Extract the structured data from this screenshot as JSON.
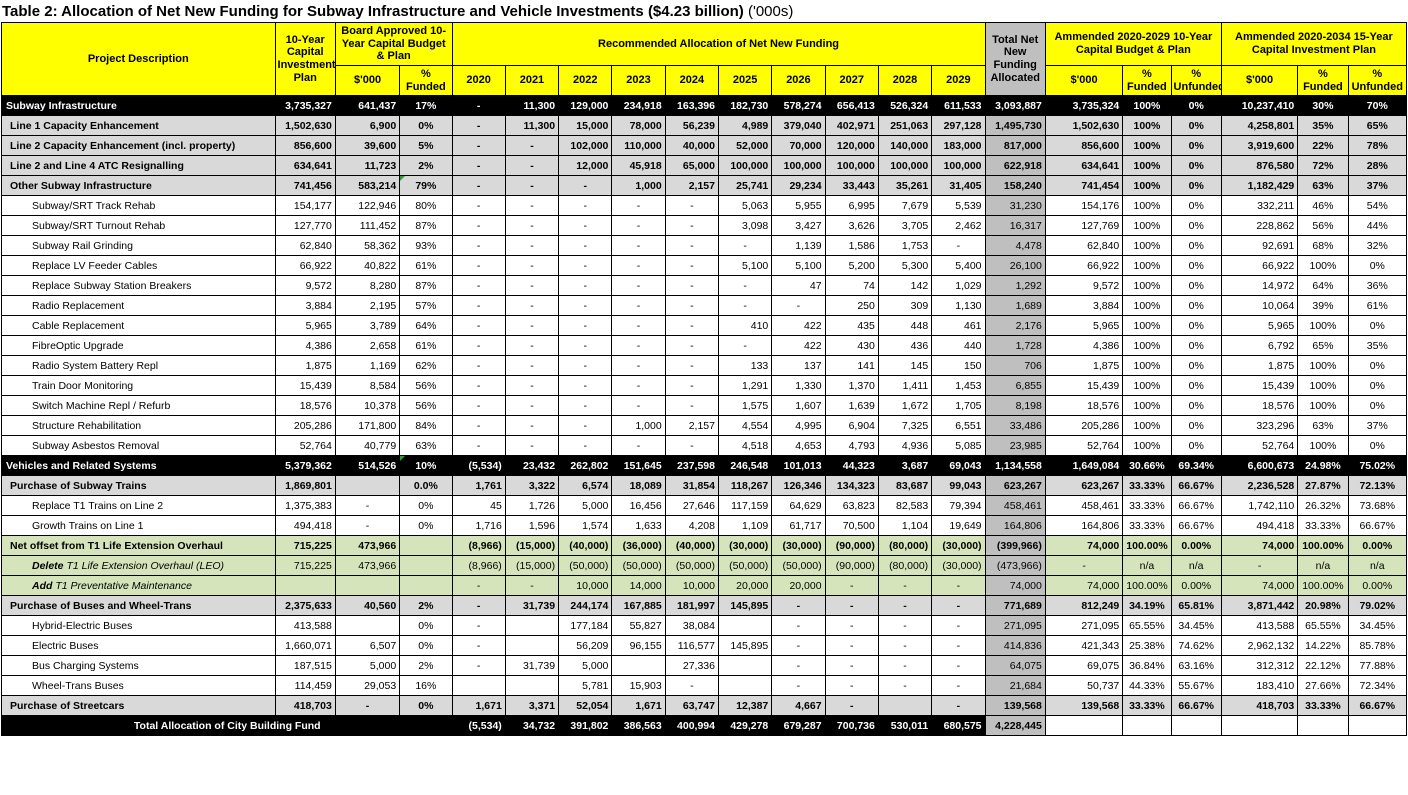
{
  "title": {
    "bold": "Table 2: Allocation of Net New Funding for Subway Infrastructure and Vehicle Investments ($4.23 billion)",
    "suffix": "('000s)"
  },
  "colors": {
    "header_bg": "#FFFF00",
    "section_row_bg": "#D9D9D9",
    "green_row_bg": "#D6E4BC",
    "total_column_bg": "#BFBFBF",
    "black_row_bg": "#000000"
  },
  "header": {
    "project_description": "Project Description",
    "ten_year_plan": "10-Year Capital Investment Plan",
    "board_approved": "Board Approved 10-Year Capital Budget & Plan",
    "recommended": "Recommended Allocation of Net New Funding",
    "total_net": "Total Net New Funding Allocated",
    "amended_2029": "Ammended 2020-2029 10-Year Capital Budget & Plan",
    "amended_2034": "Ammended 2020-2034 15-Year Capital Investment Plan",
    "dollars": "$'000",
    "pct_funded": "% Funded",
    "pct_unfunded": "% Unfunded",
    "years": [
      "2020",
      "2021",
      "2022",
      "2023",
      "2024",
      "2025",
      "2026",
      "2027",
      "2028",
      "2029"
    ]
  },
  "rows": [
    {
      "label": "Subway Infrastructure",
      "style": "black",
      "indent": 0,
      "cells": [
        "3,735,327",
        "641,437",
        "17%",
        "-",
        "11,300",
        "129,000",
        "234,918",
        "163,396",
        "182,730",
        "578,274",
        "656,413",
        "526,324",
        "611,533",
        "3,093,887",
        "3,735,324",
        "100%",
        "0%",
        "10,237,410",
        "30%",
        "70%"
      ]
    },
    {
      "label": "Line 1 Capacity Enhancement",
      "style": "section",
      "indent": 1,
      "cells": [
        "1,502,630",
        "6,900",
        "0%",
        "-",
        "11,300",
        "15,000",
        "78,000",
        "56,239",
        "4,989",
        "379,040",
        "402,971",
        "251,063",
        "297,128",
        "1,495,730",
        "1,502,630",
        "100%",
        "0%",
        "4,258,801",
        "35%",
        "65%"
      ]
    },
    {
      "label": "Line 2 Capacity Enhancement (incl. property)",
      "style": "section",
      "indent": 1,
      "cells": [
        "856,600",
        "39,600",
        "5%",
        "-",
        "-",
        "102,000",
        "110,000",
        "40,000",
        "52,000",
        "70,000",
        "120,000",
        "140,000",
        "183,000",
        "817,000",
        "856,600",
        "100%",
        "0%",
        "3,919,600",
        "22%",
        "78%"
      ]
    },
    {
      "label": "Line 2 and Line 4 ATC Resignalling",
      "style": "section",
      "indent": 1,
      "cells": [
        "634,641",
        "11,723",
        "2%",
        "-",
        "-",
        "12,000",
        "45,918",
        "65,000",
        "100,000",
        "100,000",
        "100,000",
        "100,000",
        "100,000",
        "622,918",
        "634,641",
        "100%",
        "0%",
        "876,580",
        "72%",
        "28%"
      ]
    },
    {
      "label": "Other Subway Infrastructure",
      "style": "section",
      "indent": 1,
      "flags": [
        2
      ],
      "cells": [
        "741,456",
        "583,214",
        "79%",
        "-",
        "-",
        "-",
        "1,000",
        "2,157",
        "25,741",
        "29,234",
        "33,443",
        "35,261",
        "31,405",
        "158,240",
        "741,454",
        "100%",
        "0%",
        "1,182,429",
        "63%",
        "37%"
      ]
    },
    {
      "label": "Subway/SRT Track Rehab",
      "style": "sub",
      "indent": 2,
      "cells": [
        "154,177",
        "122,946",
        "80%",
        "-",
        "-",
        "-",
        "-",
        "-",
        "5,063",
        "5,955",
        "6,995",
        "7,679",
        "5,539",
        "31,230",
        "154,176",
        "100%",
        "0%",
        "332,211",
        "46%",
        "54%"
      ]
    },
    {
      "label": "Subway/SRT Turnout Rehab",
      "style": "sub",
      "indent": 2,
      "cells": [
        "127,770",
        "111,452",
        "87%",
        "-",
        "-",
        "-",
        "-",
        "-",
        "3,098",
        "3,427",
        "3,626",
        "3,705",
        "2,462",
        "16,317",
        "127,769",
        "100%",
        "0%",
        "228,862",
        "56%",
        "44%"
      ]
    },
    {
      "label": "Subway Rail Grinding",
      "style": "sub",
      "indent": 2,
      "cells": [
        "62,840",
        "58,362",
        "93%",
        "-",
        "-",
        "-",
        "-",
        "-",
        "-",
        "1,139",
        "1,586",
        "1,753",
        "-",
        "4,478",
        "62,840",
        "100%",
        "0%",
        "92,691",
        "68%",
        "32%"
      ]
    },
    {
      "label": "Replace LV Feeder Cables",
      "style": "sub",
      "indent": 2,
      "cells": [
        "66,922",
        "40,822",
        "61%",
        "-",
        "-",
        "-",
        "-",
        "-",
        "5,100",
        "5,100",
        "5,200",
        "5,300",
        "5,400",
        "26,100",
        "66,922",
        "100%",
        "0%",
        "66,922",
        "100%",
        "0%"
      ]
    },
    {
      "label": "Replace Subway Station Breakers",
      "style": "sub",
      "indent": 2,
      "cells": [
        "9,572",
        "8,280",
        "87%",
        "-",
        "-",
        "-",
        "-",
        "-",
        "-",
        "47",
        "74",
        "142",
        "1,029",
        "1,292",
        "9,572",
        "100%",
        "0%",
        "14,972",
        "64%",
        "36%"
      ]
    },
    {
      "label": "Radio Replacement",
      "style": "sub",
      "indent": 2,
      "cells": [
        "3,884",
        "2,195",
        "57%",
        "-",
        "-",
        "-",
        "-",
        "-",
        "-",
        "-",
        "250",
        "309",
        "1,130",
        "1,689",
        "3,884",
        "100%",
        "0%",
        "10,064",
        "39%",
        "61%"
      ]
    },
    {
      "label": "Cable Replacement",
      "style": "sub",
      "indent": 2,
      "cells": [
        "5,965",
        "3,789",
        "64%",
        "-",
        "-",
        "-",
        "-",
        "-",
        "410",
        "422",
        "435",
        "448",
        "461",
        "2,176",
        "5,965",
        "100%",
        "0%",
        "5,965",
        "100%",
        "0%"
      ]
    },
    {
      "label": "FibreOptic Upgrade",
      "style": "sub",
      "indent": 2,
      "cells": [
        "4,386",
        "2,658",
        "61%",
        "-",
        "-",
        "-",
        "-",
        "-",
        "-",
        "422",
        "430",
        "436",
        "440",
        "1,728",
        "4,386",
        "100%",
        "0%",
        "6,792",
        "65%",
        "35%"
      ]
    },
    {
      "label": "Radio System Battery Repl",
      "style": "sub",
      "indent": 2,
      "cells": [
        "1,875",
        "1,169",
        "62%",
        "-",
        "-",
        "-",
        "-",
        "-",
        "133",
        "137",
        "141",
        "145",
        "150",
        "706",
        "1,875",
        "100%",
        "0%",
        "1,875",
        "100%",
        "0%"
      ]
    },
    {
      "label": "Train Door Monitoring",
      "style": "sub",
      "indent": 2,
      "cells": [
        "15,439",
        "8,584",
        "56%",
        "-",
        "-",
        "-",
        "-",
        "-",
        "1,291",
        "1,330",
        "1,370",
        "1,411",
        "1,453",
        "6,855",
        "15,439",
        "100%",
        "0%",
        "15,439",
        "100%",
        "0%"
      ]
    },
    {
      "label": "Switch Machine Repl / Refurb",
      "style": "sub",
      "indent": 2,
      "cells": [
        "18,576",
        "10,378",
        "56%",
        "-",
        "-",
        "-",
        "-",
        "-",
        "1,575",
        "1,607",
        "1,639",
        "1,672",
        "1,705",
        "8,198",
        "18,576",
        "100%",
        "0%",
        "18,576",
        "100%",
        "0%"
      ]
    },
    {
      "label": "Structure Rehabilitation",
      "style": "sub",
      "indent": 2,
      "cells": [
        "205,286",
        "171,800",
        "84%",
        "-",
        "-",
        "-",
        "1,000",
        "2,157",
        "4,554",
        "4,995",
        "6,904",
        "7,325",
        "6,551",
        "33,486",
        "205,286",
        "100%",
        "0%",
        "323,296",
        "63%",
        "37%"
      ]
    },
    {
      "label": "Subway Asbestos Removal",
      "style": "sub",
      "indent": 2,
      "cells": [
        "52,764",
        "40,779",
        "63%",
        "-",
        "-",
        "-",
        "-",
        "-",
        "4,518",
        "4,653",
        "4,793",
        "4,936",
        "5,085",
        "23,985",
        "52,764",
        "100%",
        "0%",
        "52,764",
        "100%",
        "0%"
      ]
    },
    {
      "label": "Vehicles and Related Systems",
      "style": "black",
      "indent": 0,
      "flags": [
        2
      ],
      "cells": [
        "5,379,362",
        "514,526",
        "10%",
        "(5,534)",
        "23,432",
        "262,802",
        "151,645",
        "237,598",
        "246,548",
        "101,013",
        "44,323",
        "3,687",
        "69,043",
        "1,134,558",
        "1,649,084",
        "30.66%",
        "69.34%",
        "6,600,673",
        "24.98%",
        "75.02%"
      ]
    },
    {
      "label": "Purchase of Subway Trains",
      "style": "section",
      "indent": 1,
      "cells": [
        "1,869,801",
        "",
        "0.0%",
        "1,761",
        "3,322",
        "6,574",
        "18,089",
        "31,854",
        "118,267",
        "126,346",
        "134,323",
        "83,687",
        "99,043",
        "623,267",
        "623,267",
        "33.33%",
        "66.67%",
        "2,236,528",
        "27.87%",
        "72.13%"
      ]
    },
    {
      "label": "Replace T1 Trains on Line 2",
      "style": "sub",
      "indent": 2,
      "cells": [
        "1,375,383",
        "-",
        "0%",
        "45",
        "1,726",
        "5,000",
        "16,456",
        "27,646",
        "117,159",
        "64,629",
        "63,823",
        "82,583",
        "79,394",
        "458,461",
        "458,461",
        "33.33%",
        "66.67%",
        "1,742,110",
        "26.32%",
        "73.68%"
      ]
    },
    {
      "label": "Growth Trains on Line 1",
      "style": "sub",
      "indent": 2,
      "cells": [
        "494,418",
        "-",
        "0%",
        "1,716",
        "1,596",
        "1,574",
        "1,633",
        "4,208",
        "1,109",
        "61,717",
        "70,500",
        "1,104",
        "19,649",
        "164,806",
        "164,806",
        "33.33%",
        "66.67%",
        "494,418",
        "33.33%",
        "66.67%"
      ]
    },
    {
      "label": "Net offset from T1 Life Extension Overhaul",
      "style": "green",
      "indent": 1,
      "cells": [
        "715,225",
        "473,966",
        "",
        "(8,966)",
        "(15,000)",
        "(40,000)",
        "(36,000)",
        "(40,000)",
        "(30,000)",
        "(30,000)",
        "(90,000)",
        "(80,000)",
        "(30,000)",
        "(399,966)",
        "74,000",
        "100.00%",
        "0.00%",
        "74,000",
        "100.00%",
        "0.00%"
      ]
    },
    {
      "prefix": "Delete",
      "label": "T1 Life Extension Overhaul (LEO)",
      "style": "green-sub",
      "indent": 2,
      "cells": [
        "715,225",
        "473,966",
        "",
        "(8,966)",
        "(15,000)",
        "(50,000)",
        "(50,000)",
        "(50,000)",
        "(50,000)",
        "(50,000)",
        "(90,000)",
        "(80,000)",
        "(30,000)",
        "(473,966)",
        "-",
        "n/a",
        "n/a",
        "-",
        "n/a",
        "n/a"
      ]
    },
    {
      "prefix": "Add",
      "label": "T1 Preventative Maintenance",
      "style": "green-sub",
      "indent": 2,
      "cells": [
        "",
        "",
        "",
        "-",
        "-",
        "10,000",
        "14,000",
        "10,000",
        "20,000",
        "20,000",
        "-",
        "-",
        "-",
        "74,000",
        "74,000",
        "100.00%",
        "0.00%",
        "74,000",
        "100.00%",
        "0.00%"
      ]
    },
    {
      "label": "Purchase of Buses and Wheel-Trans",
      "style": "section",
      "indent": 1,
      "cells": [
        "2,375,633",
        "40,560",
        "2%",
        "-",
        "31,739",
        "244,174",
        "167,885",
        "181,997",
        "145,895",
        "-",
        "-",
        "-",
        "-",
        "771,689",
        "812,249",
        "34.19%",
        "65.81%",
        "3,871,442",
        "20.98%",
        "79.02%"
      ]
    },
    {
      "label": "Hybrid-Electric Buses",
      "style": "sub",
      "indent": 2,
      "cells": [
        "413,588",
        "",
        "0%",
        "-",
        "",
        "177,184",
        "55,827",
        "38,084",
        "",
        "-",
        "-",
        "-",
        "-",
        "271,095",
        "271,095",
        "65.55%",
        "34.45%",
        "413,588",
        "65.55%",
        "34.45%"
      ]
    },
    {
      "label": "Electric Buses",
      "style": "sub",
      "indent": 2,
      "cells": [
        "1,660,071",
        "6,507",
        "0%",
        "-",
        "",
        "56,209",
        "96,155",
        "116,577",
        "145,895",
        "-",
        "-",
        "-",
        "-",
        "414,836",
        "421,343",
        "25.38%",
        "74.62%",
        "2,962,132",
        "14.22%",
        "85.78%"
      ]
    },
    {
      "label": "Bus Charging Systems",
      "style": "sub",
      "indent": 2,
      "cells": [
        "187,515",
        "5,000",
        "2%",
        "-",
        "31,739",
        "5,000",
        "",
        "27,336",
        "",
        "-",
        "-",
        "-",
        "-",
        "64,075",
        "69,075",
        "36.84%",
        "63.16%",
        "312,312",
        "22.12%",
        "77.88%"
      ]
    },
    {
      "label": "Wheel-Trans Buses",
      "style": "sub",
      "indent": 2,
      "cells": [
        "114,459",
        "29,053",
        "16%",
        "",
        "",
        "5,781",
        "15,903",
        "-",
        "",
        "-",
        "-",
        "-",
        "-",
        "21,684",
        "50,737",
        "44.33%",
        "55.67%",
        "183,410",
        "27.66%",
        "72.34%"
      ]
    },
    {
      "label": "Purchase of Streetcars",
      "style": "section",
      "indent": 1,
      "cells": [
        "418,703",
        "-",
        "0%",
        "1,671",
        "3,371",
        "52,054",
        "1,671",
        "63,747",
        "12,387",
        "4,667",
        "-",
        "",
        "-",
        "139,568",
        "139,568",
        "33.33%",
        "66.67%",
        "418,703",
        "33.33%",
        "66.67%"
      ]
    },
    {
      "label": "Total Allocation of City Building Fund",
      "style": "total",
      "span": 4,
      "cells": [
        "(5,534)",
        "34,732",
        "391,802",
        "386,563",
        "400,994",
        "429,278",
        "679,287",
        "700,736",
        "530,011",
        "680,575",
        "4,228,445",
        "",
        "",
        "",
        "",
        "",
        ""
      ]
    }
  ]
}
